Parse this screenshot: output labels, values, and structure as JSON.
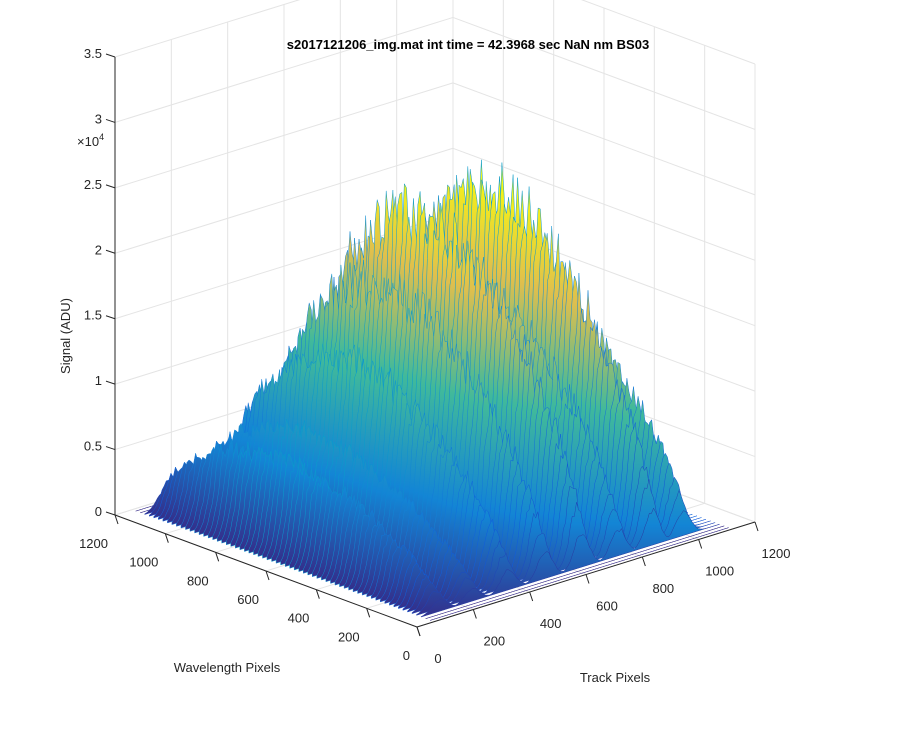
{
  "chart_data": {
    "type": "surface",
    "title": "s2017121206_img.mat int time = 42.3968 sec  NaN nm BS03",
    "xlabel": "Track Pixels",
    "ylabel": "Wavelength Pixels",
    "zlabel": "Signal (ADU)",
    "z_exponent_label": "×10",
    "z_exponent_power": "4",
    "xlim": [
      0,
      1200
    ],
    "ylim": [
      0,
      1200
    ],
    "zlim": [
      0,
      35000
    ],
    "x_ticks": [
      "0",
      "200",
      "400",
      "600",
      "800",
      "1000",
      "1200"
    ],
    "y_ticks": [
      "0",
      "200",
      "400",
      "600",
      "800",
      "1000",
      "1200"
    ],
    "z_ticks": [
      "0",
      "0.5",
      "1",
      "1.5",
      "2",
      "2.5",
      "3",
      "3.5"
    ],
    "grid": true,
    "colormap": "parula",
    "colormap_stops": [
      "#352a87",
      "#0f5cdd",
      "#1481d6",
      "#06a4ca",
      "#2eb7a4",
      "#87bf77",
      "#d1bb59",
      "#fec832",
      "#f9fb0e"
    ],
    "track_peaks": [
      {
        "track": 125,
        "peak": 8800
      },
      {
        "track": 240,
        "peak": 9900
      },
      {
        "track": 370,
        "peak": 15800
      },
      {
        "track": 500,
        "peak": 21500
      },
      {
        "track": 630,
        "peak": 27000
      },
      {
        "track": 760,
        "peak": 21000
      },
      {
        "track": 880,
        "peak": 27500
      },
      {
        "track": 990,
        "peak": 18500
      }
    ],
    "data_extent": {
      "track": [
        90,
        1080
      ],
      "wavelength": [
        40,
        1160
      ]
    }
  }
}
